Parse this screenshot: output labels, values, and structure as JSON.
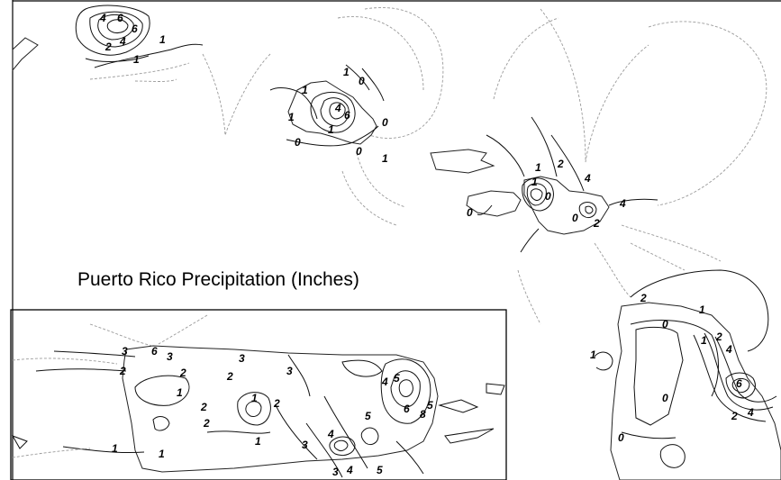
{
  "map": {
    "title": "Puerto Rico Precipitation (Inches)",
    "colors": {
      "contour": "#111111",
      "dotted": "#9a9a9a",
      "background": "#ffffff"
    },
    "contour_labels": [
      "4",
      "6",
      "6",
      "2",
      "4",
      "1",
      "1",
      "1",
      "0",
      "1",
      "1",
      "4",
      "6",
      "0",
      "0",
      "1",
      "1",
      "0",
      "1",
      "2",
      "4",
      "4",
      "1",
      "0",
      "0",
      "2",
      "0",
      "2",
      "1",
      "0",
      "1",
      "2",
      "4",
      "6",
      "2",
      "0",
      "4",
      "1",
      "0",
      "3",
      "6",
      "3",
      "2",
      "2",
      "2",
      "3",
      "1",
      "3",
      "2",
      "1",
      "2",
      "2",
      "1",
      "1",
      "3",
      "3",
      "4",
      "5",
      "4",
      "5",
      "6",
      "8",
      "4",
      "5",
      "5",
      "1"
    ]
  }
}
